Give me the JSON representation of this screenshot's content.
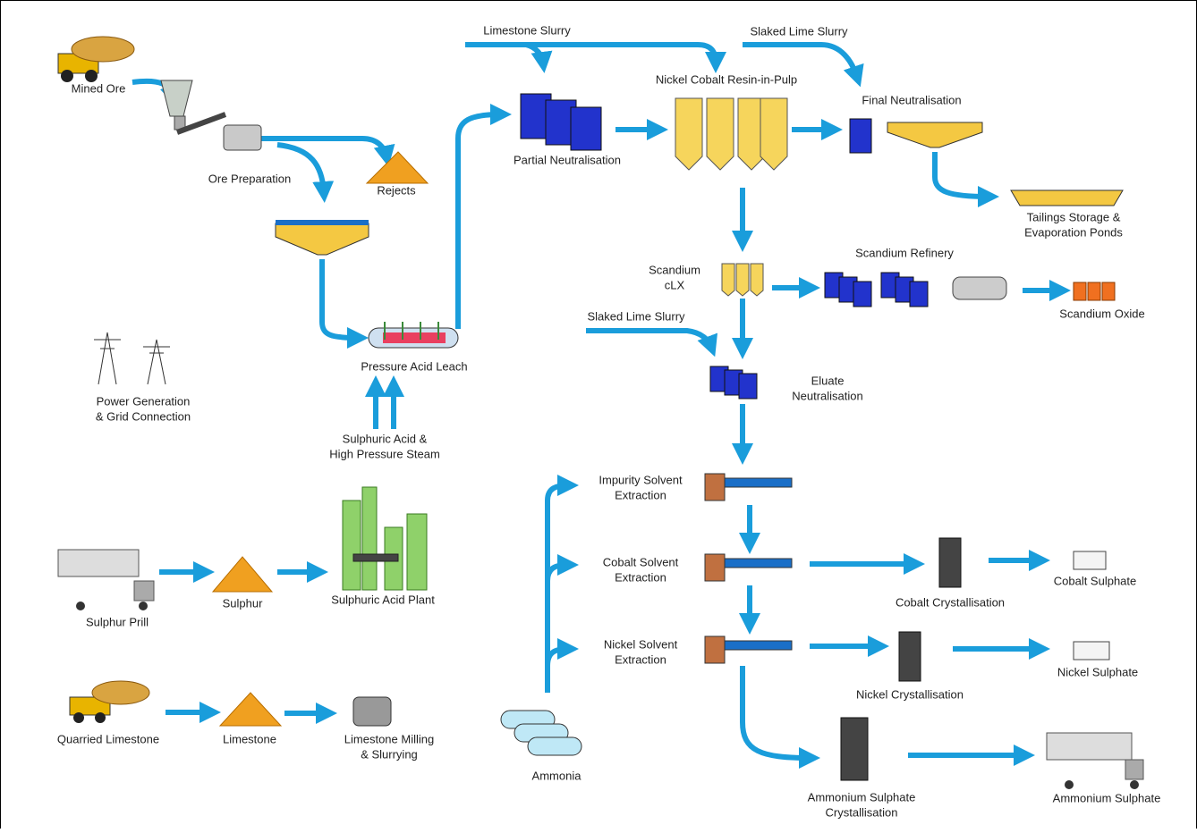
{
  "nodes": [
    {
      "label": [
        "Mined Ore"
      ]
    },
    {
      "label": [
        "Ore Preparation"
      ]
    },
    {
      "label": [
        "Rejects"
      ]
    },
    {
      "label": [
        "Pressure Acid Leach"
      ]
    },
    {
      "label": [
        "Power Generation",
        "& Grid Connection"
      ]
    },
    {
      "label": [
        "Sulphuric Acid &",
        "High Pressure Steam"
      ]
    },
    {
      "label": [
        "Sulphur Prill"
      ]
    },
    {
      "label": [
        "Sulphur"
      ]
    },
    {
      "label": [
        "Sulphuric Acid Plant"
      ]
    },
    {
      "label": [
        "Quarried Limestone"
      ]
    },
    {
      "label": [
        "Limestone"
      ]
    },
    {
      "label": [
        "Limestone Milling",
        "& Slurrying"
      ]
    },
    {
      "label": [
        "Ammonia"
      ]
    },
    {
      "label": [
        "Limestone Slurry"
      ]
    },
    {
      "label": [
        "Slaked Lime Slurry"
      ]
    },
    {
      "label": [
        "Nickel Cobalt Resin-in-Pulp"
      ]
    },
    {
      "label": [
        "Partial Neutralisation"
      ]
    },
    {
      "label": [
        "Final Neutralisation"
      ]
    },
    {
      "label": [
        "Tailings Storage &",
        "Evaporation Ponds"
      ]
    },
    {
      "label": [
        "Scandium",
        "cLX"
      ]
    },
    {
      "label": [
        "Scandium Refinery"
      ]
    },
    {
      "label": [
        "Scandium Oxide"
      ]
    },
    {
      "label": [
        "Slaked Lime Slurry"
      ]
    },
    {
      "label": [
        "Eluate",
        "Neutralisation"
      ]
    },
    {
      "label": [
        "Impurity Solvent",
        "Extraction"
      ]
    },
    {
      "label": [
        "Cobalt Solvent",
        "Extraction"
      ]
    },
    {
      "label": [
        "Nickel Solvent",
        "Extraction"
      ]
    },
    {
      "label": [
        "Cobalt Crystallisation"
      ]
    },
    {
      "label": [
        "Cobalt Sulphate"
      ]
    },
    {
      "label": [
        "Nickel Crystallisation"
      ]
    },
    {
      "label": [
        "Nickel Sulphate"
      ]
    },
    {
      "label": [
        "Ammonium Sulphate",
        "Crystallisation"
      ]
    },
    {
      "label": [
        "Ammonium Sulphate"
      ]
    }
  ]
}
